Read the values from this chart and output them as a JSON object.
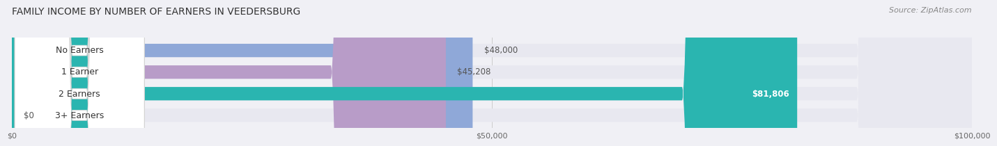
{
  "title": "FAMILY INCOME BY NUMBER OF EARNERS IN VEEDERSBURG",
  "source": "Source: ZipAtlas.com",
  "categories": [
    "No Earners",
    "1 Earner",
    "2 Earners",
    "3+ Earners"
  ],
  "values": [
    48000,
    45208,
    81806,
    0
  ],
  "bar_colors": [
    "#8fa8d8",
    "#b89cc8",
    "#2ab5b0",
    "#a8b8e8"
  ],
  "label_colors": [
    "#555555",
    "#555555",
    "#ffffff",
    "#555555"
  ],
  "value_labels": [
    "$48,000",
    "$45,208",
    "$81,806",
    "$0"
  ],
  "xlim": [
    0,
    100000
  ],
  "xticks": [
    0,
    50000,
    100000
  ],
  "xtick_labels": [
    "$0",
    "$50,000",
    "$100,000"
  ],
  "background_color": "#f0f0f5",
  "bar_background_color": "#e8e8f0",
  "title_fontsize": 10,
  "source_fontsize": 8,
  "label_fontsize": 9,
  "value_fontsize": 8.5
}
